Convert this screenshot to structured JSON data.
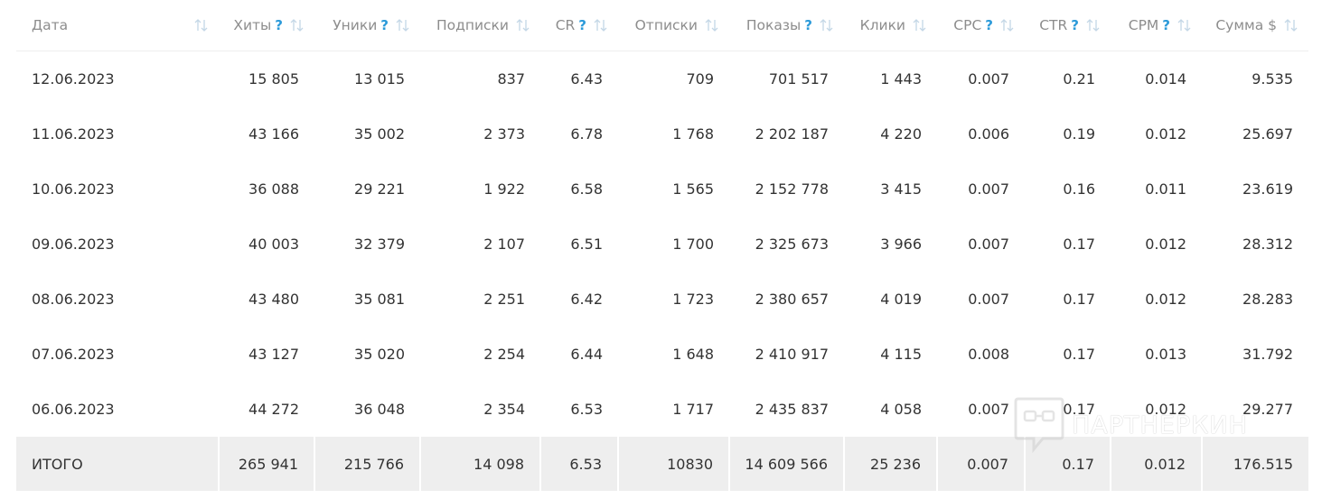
{
  "table": {
    "columns": [
      {
        "label": "Дата",
        "help": "",
        "sort_icon": "sort-arrows-icon"
      },
      {
        "label": "Хиты",
        "help": "?",
        "sort_icon": "sort-arrows-icon"
      },
      {
        "label": "Уники",
        "help": "?",
        "sort_icon": "sort-arrows-icon"
      },
      {
        "label": "Подписки",
        "help": "",
        "sort_icon": "sort-arrows-icon"
      },
      {
        "label": "CR",
        "help": "?",
        "sort_icon": "sort-arrows-icon"
      },
      {
        "label": "Отписки",
        "help": "",
        "sort_icon": "sort-arrows-icon"
      },
      {
        "label": "Показы",
        "help": "?",
        "sort_icon": "sort-arrows-icon"
      },
      {
        "label": "Клики",
        "help": "",
        "sort_icon": "sort-arrows-icon"
      },
      {
        "label": "CPC",
        "help": "?",
        "sort_icon": "sort-arrows-icon"
      },
      {
        "label": "CTR",
        "help": "?",
        "sort_icon": "sort-arrows-icon"
      },
      {
        "label": "CPM",
        "help": "?",
        "sort_icon": "sort-arrows-icon"
      },
      {
        "label": "Сумма $",
        "help": "",
        "sort_icon": "sort-arrows-icon"
      }
    ],
    "rows": [
      [
        "12.06.2023",
        "15 805",
        "13 015",
        "837",
        "6.43",
        "709",
        "701 517",
        "1 443",
        "0.007",
        "0.21",
        "0.014",
        "9.535"
      ],
      [
        "11.06.2023",
        "43 166",
        "35 002",
        "2 373",
        "6.78",
        "1 768",
        "2 202 187",
        "4 220",
        "0.006",
        "0.19",
        "0.012",
        "25.697"
      ],
      [
        "10.06.2023",
        "36 088",
        "29 221",
        "1 922",
        "6.58",
        "1 565",
        "2 152 778",
        "3 415",
        "0.007",
        "0.16",
        "0.011",
        "23.619"
      ],
      [
        "09.06.2023",
        "40 003",
        "32 379",
        "2 107",
        "6.51",
        "1 700",
        "2 325 673",
        "3 966",
        "0.007",
        "0.17",
        "0.012",
        "28.312"
      ],
      [
        "08.06.2023",
        "43 480",
        "35 081",
        "2 251",
        "6.42",
        "1 723",
        "2 380 657",
        "4 019",
        "0.007",
        "0.17",
        "0.012",
        "28.283"
      ],
      [
        "07.06.2023",
        "43 127",
        "35 020",
        "2 254",
        "6.44",
        "1 648",
        "2 410 917",
        "4 115",
        "0.008",
        "0.17",
        "0.013",
        "31.792"
      ],
      [
        "06.06.2023",
        "44 272",
        "36 048",
        "2 354",
        "6.53",
        "1 717",
        "2 435 837",
        "4 058",
        "0.007",
        "0.17",
        "0.012",
        "29.277"
      ]
    ],
    "total": [
      "ИТОГО",
      "265 941",
      "215 766",
      "14 098",
      "6.53",
      "10830",
      "14 609 566",
      "25 236",
      "0.007",
      "0.17",
      "0.012",
      "176.515"
    ]
  },
  "watermark": {
    "text": "ПАРТНЕРКИН",
    "icon": "chat-bubble-logo-icon"
  },
  "colors": {
    "header_text": "#8d8d8d",
    "help_accent": "#2b9ad9",
    "body_text": "#333333",
    "total_bg": "#eeeeee"
  }
}
